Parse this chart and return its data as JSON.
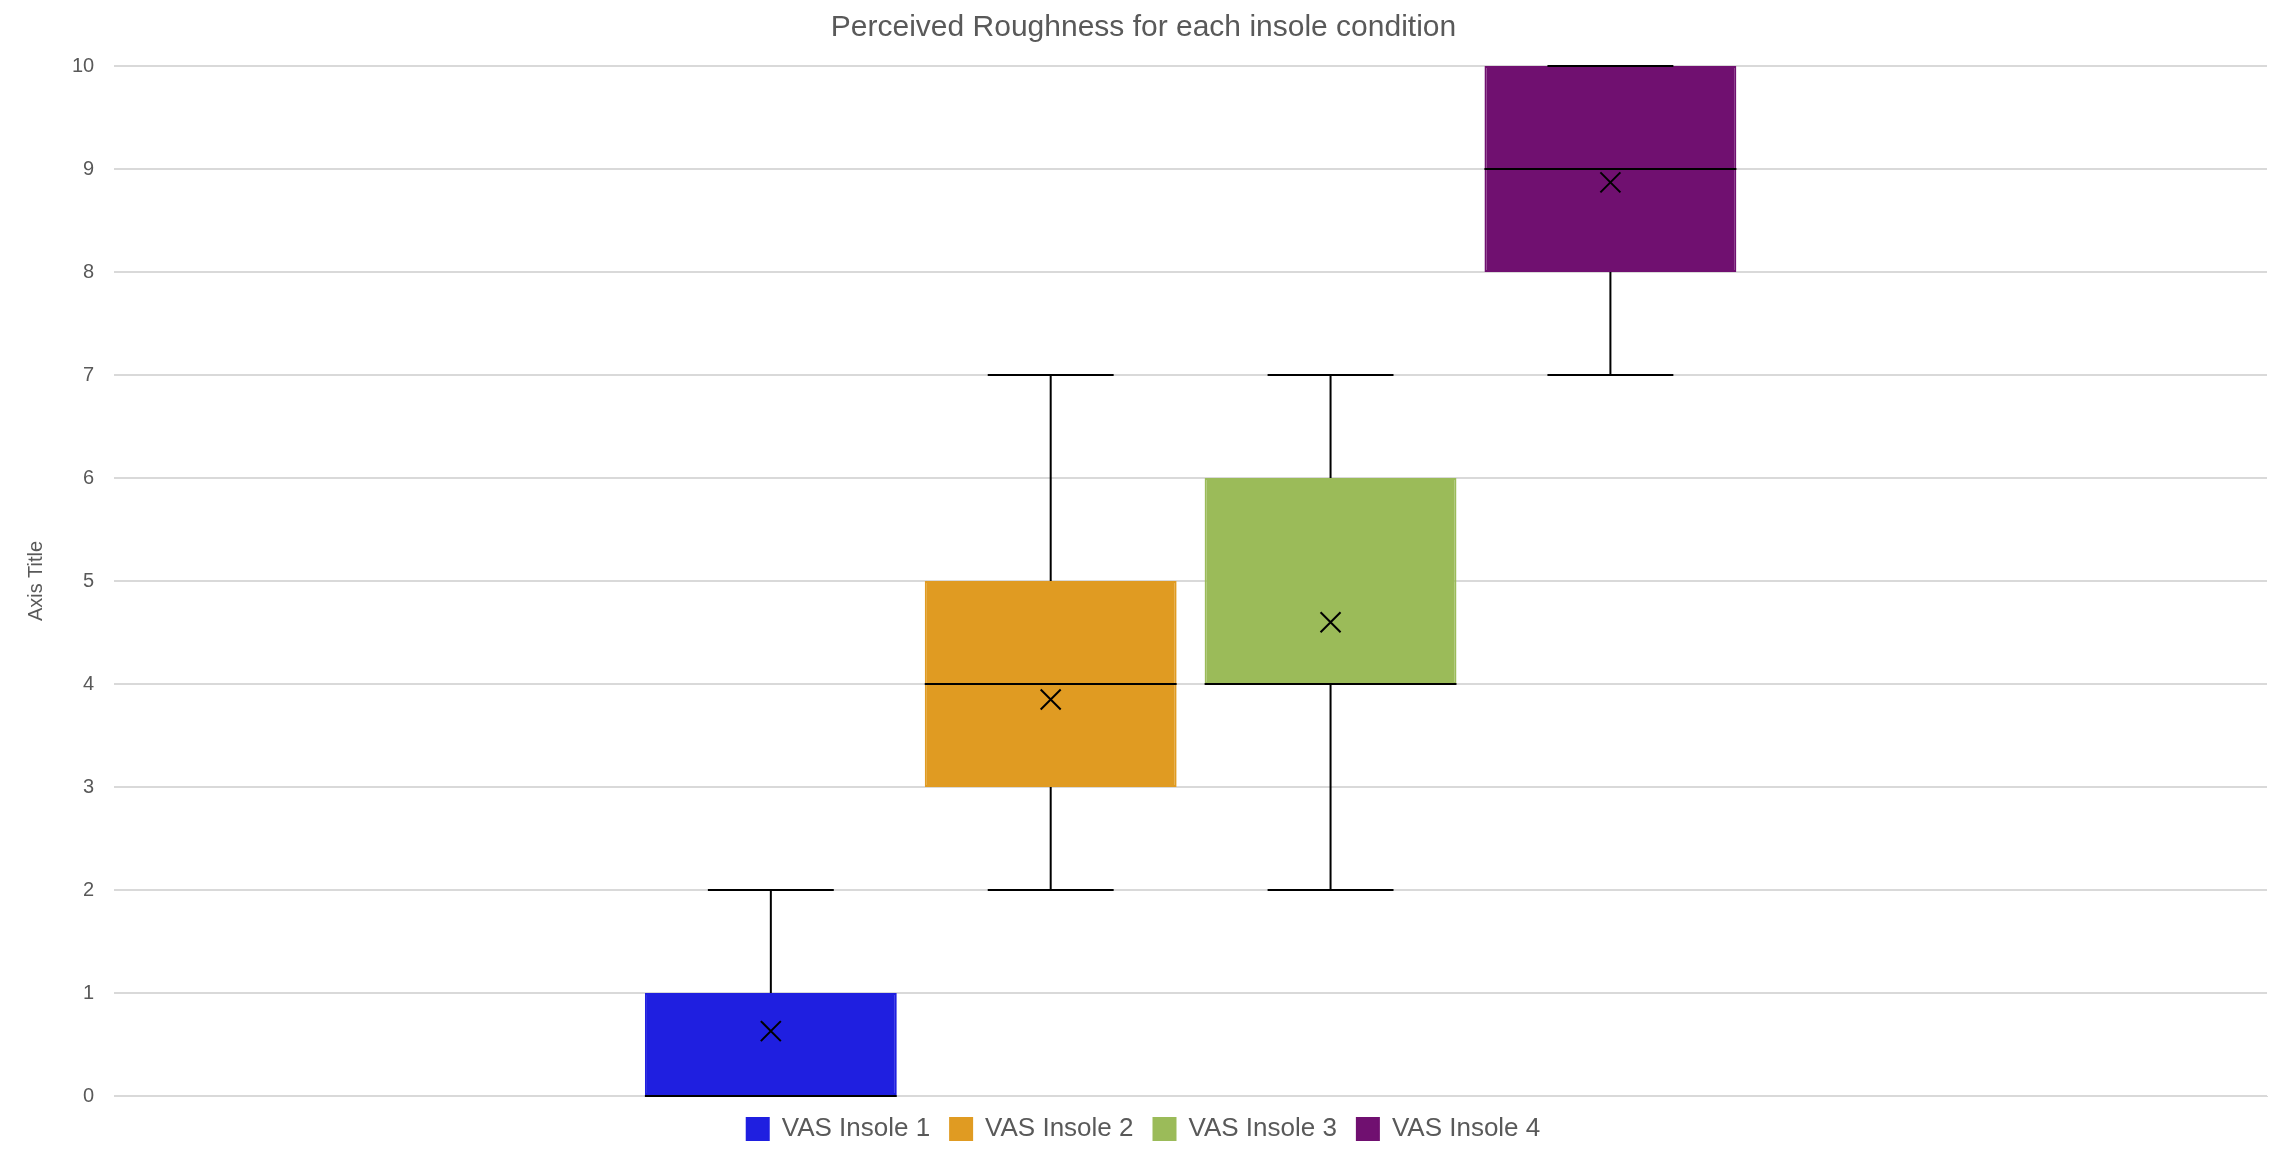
{
  "chart_data": {
    "type": "box",
    "title": "Perceived Roughness for each insole condition",
    "ylabel": "Axis Title",
    "categories": [
      null
    ],
    "series": [
      {
        "name": "VAS Insole 1",
        "color": "#1f1fe0",
        "boxes": [
          {
            "low": 0,
            "q1": 0,
            "median": 0,
            "q3": 1,
            "high": 2,
            "mean": 0.63
          }
        ]
      },
      {
        "name": "VAS Insole 2",
        "color": "#e09b22",
        "boxes": [
          {
            "low": 2,
            "q1": 3,
            "median": 4,
            "q3": 5,
            "high": 7,
            "mean": 3.85
          }
        ]
      },
      {
        "name": "VAS Insole 3",
        "color": "#9bbb59",
        "boxes": [
          {
            "low": 2,
            "q1": 4,
            "median": 4,
            "q3": 6,
            "high": 7,
            "mean": 4.6
          }
        ]
      },
      {
        "name": "VAS Insole 4",
        "color": "#701070",
        "boxes": [
          {
            "low": 7,
            "q1": 8,
            "median": 9,
            "q3": 10,
            "high": 10,
            "mean": 8.87
          }
        ]
      }
    ],
    "ylim": [
      0,
      10
    ],
    "yticks": [
      0,
      1,
      2,
      3,
      4,
      5,
      6,
      7,
      8,
      9,
      10
    ],
    "grid": "y",
    "legend": "bottom",
    "tick_labels": "y",
    "marker": "cross"
  }
}
